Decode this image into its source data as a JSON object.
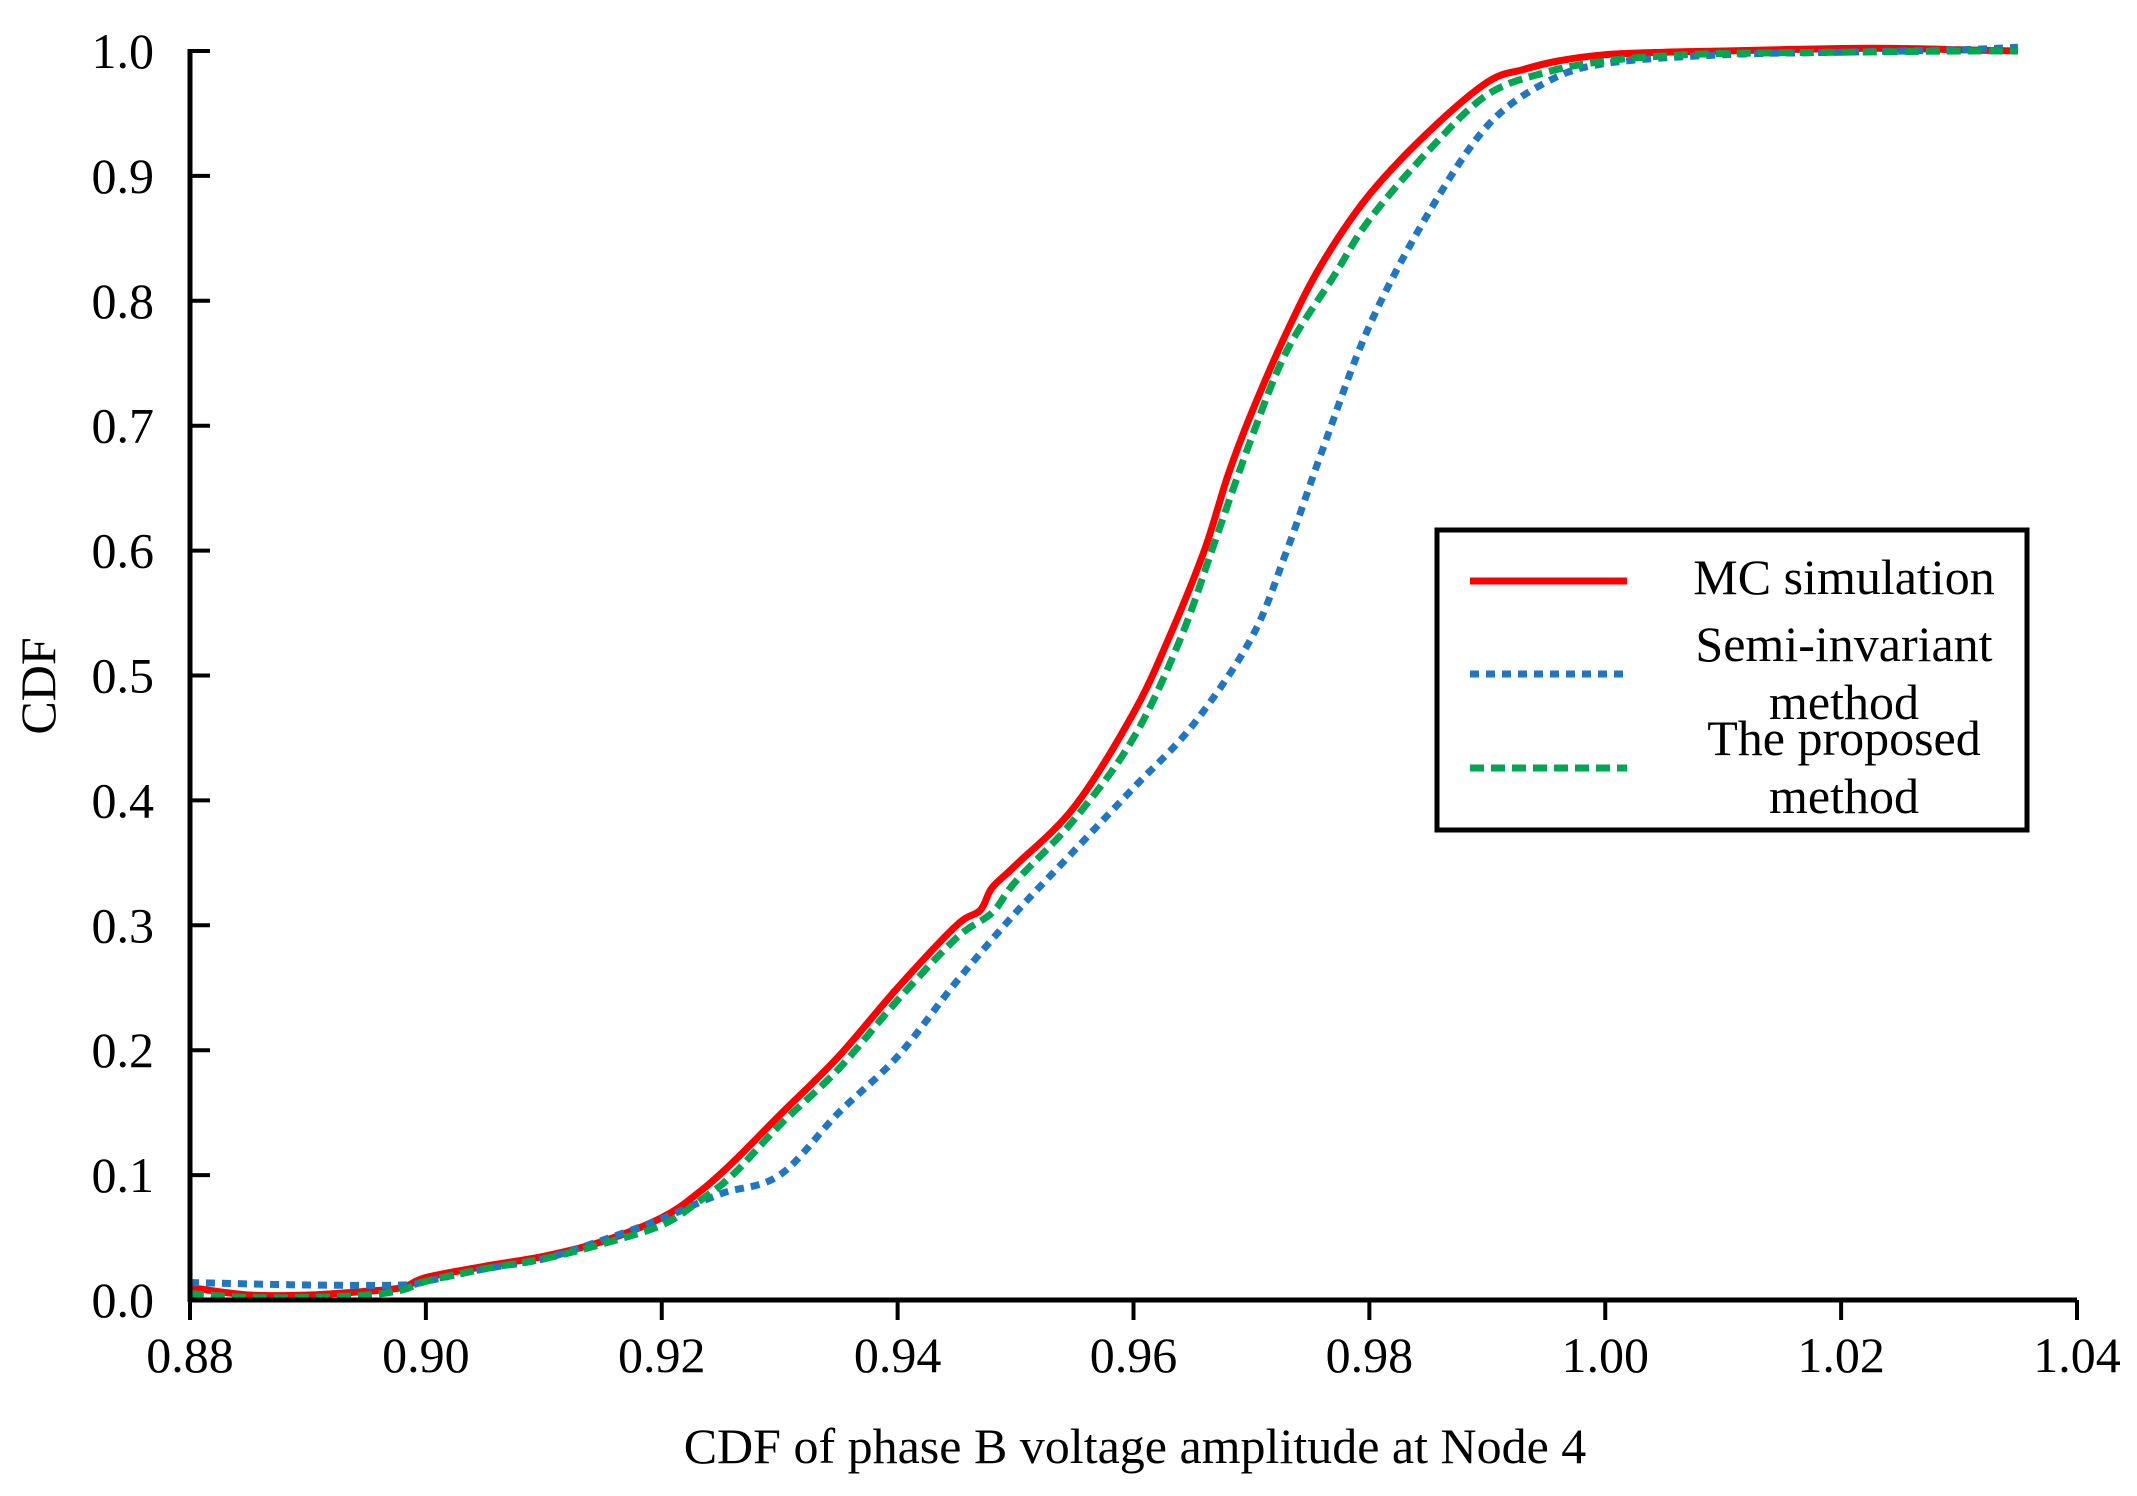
{
  "chart_data": {
    "type": "line",
    "title": "",
    "xlabel": "CDF of phase B voltage amplitude at Node 4",
    "ylabel": "CDF",
    "xlim": [
      0.88,
      1.04
    ],
    "ylim": [
      0.0,
      1.0
    ],
    "xticks": [
      "0.88",
      "0.90",
      "0.92",
      "0.94",
      "0.96",
      "0.98",
      "1.00",
      "1.02",
      "1.04"
    ],
    "yticks": [
      "0.0",
      "0.1",
      "0.2",
      "0.3",
      "0.4",
      "0.5",
      "0.6",
      "0.7",
      "0.8",
      "0.9",
      "1.0"
    ],
    "grid": false,
    "legend_position": "center-right",
    "series": [
      {
        "name": "MC simulation",
        "legend_lines": [
          "MC simulation"
        ],
        "color": "#ff0000",
        "style": "solid",
        "x": [
          0.88,
          0.885,
          0.89,
          0.895,
          0.898,
          0.9,
          0.905,
          0.91,
          0.915,
          0.92,
          0.923,
          0.926,
          0.93,
          0.935,
          0.94,
          0.945,
          0.947,
          0.948,
          0.95,
          0.955,
          0.96,
          0.963,
          0.966,
          0.968,
          0.97,
          0.973,
          0.976,
          0.98,
          0.985,
          0.99,
          0.993,
          0.996,
          1.0,
          1.005,
          1.01,
          1.02,
          1.025,
          1.03,
          1.035
        ],
        "y": [
          0.01,
          0.004,
          0.004,
          0.007,
          0.01,
          0.018,
          0.027,
          0.035,
          0.047,
          0.066,
          0.085,
          0.11,
          0.148,
          0.195,
          0.25,
          0.3,
          0.312,
          0.33,
          0.348,
          0.395,
          0.47,
          0.53,
          0.6,
          0.66,
          0.71,
          0.775,
          0.83,
          0.885,
          0.935,
          0.975,
          0.985,
          0.992,
          0.997,
          0.999,
          1.0,
          1.002,
          1.002,
          1.001,
          1.0
        ]
      },
      {
        "name": "Semi-invariant method",
        "legend_lines": [
          "Semi-invariant",
          "method"
        ],
        "color": "#1f77c4",
        "style": "dotted",
        "x": [
          0.88,
          0.89,
          0.898,
          0.9,
          0.905,
          0.91,
          0.915,
          0.92,
          0.925,
          0.93,
          0.935,
          0.94,
          0.945,
          0.95,
          0.955,
          0.96,
          0.965,
          0.97,
          0.973,
          0.976,
          0.98,
          0.985,
          0.99,
          0.995,
          1.0,
          1.01,
          1.02,
          1.03,
          1.035
        ],
        "y": [
          0.014,
          0.012,
          0.012,
          0.015,
          0.025,
          0.033,
          0.048,
          0.065,
          0.085,
          0.1,
          0.15,
          0.195,
          0.255,
          0.31,
          0.36,
          0.41,
          0.46,
          0.53,
          0.6,
          0.68,
          0.78,
          0.87,
          0.94,
          0.975,
          0.99,
          0.997,
          0.999,
          1.001,
          1.003
        ]
      },
      {
        "name": "The proposed method",
        "legend_lines": [
          "The proposed",
          "method"
        ],
        "color": "#00a651",
        "style": "dashed",
        "x": [
          0.88,
          0.885,
          0.89,
          0.895,
          0.898,
          0.9,
          0.905,
          0.91,
          0.915,
          0.92,
          0.923,
          0.926,
          0.93,
          0.935,
          0.94,
          0.945,
          0.948,
          0.95,
          0.955,
          0.96,
          0.964,
          0.967,
          0.97,
          0.973,
          0.977,
          0.98,
          0.985,
          0.99,
          0.995,
          1.0,
          1.005,
          1.01,
          1.02,
          1.03,
          1.035
        ],
        "y": [
          0.005,
          0.002,
          0.002,
          0.004,
          0.008,
          0.015,
          0.025,
          0.033,
          0.045,
          0.06,
          0.078,
          0.1,
          0.14,
          0.185,
          0.24,
          0.29,
          0.31,
          0.335,
          0.385,
          0.45,
          0.53,
          0.61,
          0.69,
          0.76,
          0.82,
          0.865,
          0.92,
          0.965,
          0.983,
          0.992,
          0.996,
          0.998,
          0.999,
          1.0,
          1.0
        ]
      }
    ]
  }
}
